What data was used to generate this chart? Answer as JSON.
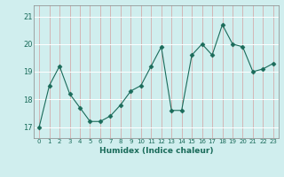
{
  "x": [
    0,
    1,
    2,
    3,
    4,
    5,
    6,
    7,
    8,
    9,
    10,
    11,
    12,
    13,
    14,
    15,
    16,
    17,
    18,
    19,
    20,
    21,
    22,
    23
  ],
  "y": [
    17.0,
    18.5,
    19.2,
    18.2,
    17.7,
    17.2,
    17.2,
    17.4,
    17.8,
    18.3,
    18.5,
    19.2,
    19.9,
    17.6,
    17.6,
    19.6,
    20.0,
    19.6,
    20.7,
    20.0,
    19.9,
    19.0,
    19.1,
    19.3
  ],
  "line_color": "#1a6b5a",
  "marker": "D",
  "marker_size": 2.5,
  "bg_color": "#d0eeee",
  "grid_color_major": "#f0c8c8",
  "grid_color_minor": "#ffffff",
  "xlabel": "Humidex (Indice chaleur)",
  "ylim": [
    16.6,
    21.4
  ],
  "xlim": [
    -0.5,
    23.5
  ],
  "yticks": [
    17,
    18,
    19,
    20,
    21
  ],
  "xticks": [
    0,
    1,
    2,
    3,
    4,
    5,
    6,
    7,
    8,
    9,
    10,
    11,
    12,
    13,
    14,
    15,
    16,
    17,
    18,
    19,
    20,
    21,
    22,
    23
  ]
}
